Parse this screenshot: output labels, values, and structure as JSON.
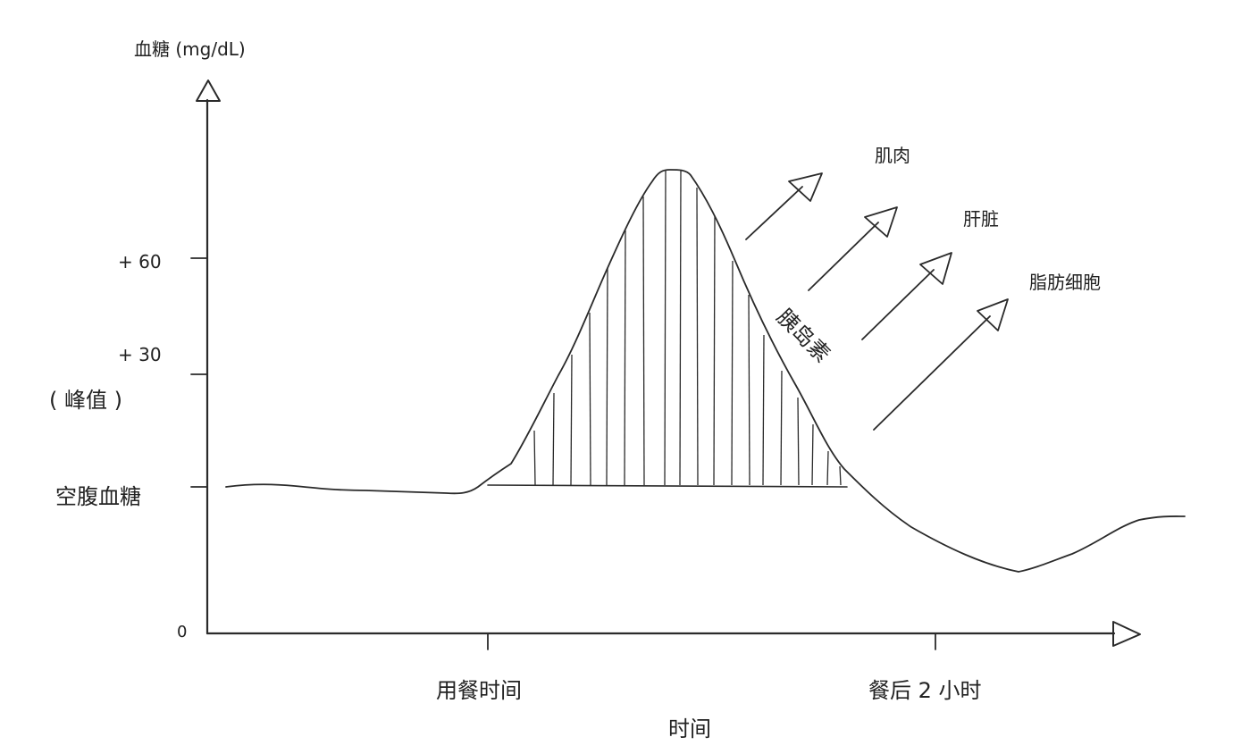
{
  "y_axis_title": "血糖 (mg/dL)",
  "x_axis_title": "时间",
  "y_ticks": {
    "plus60": "+ 60",
    "plus30": "+ 30",
    "peak_note": "( 峰值 )",
    "fasting": "空腹血糖",
    "zero": "0"
  },
  "x_ticks": {
    "meal_time": "用餐时间",
    "two_hours_after": "餐后 2 小时"
  },
  "hormone_label": "胰岛素",
  "targets": {
    "muscle": "肌肉",
    "liver": "肝脏",
    "fat_cells": "脂肪细胞"
  },
  "colors": {
    "ink": "#2a2a2a",
    "background": "#ffffff"
  }
}
